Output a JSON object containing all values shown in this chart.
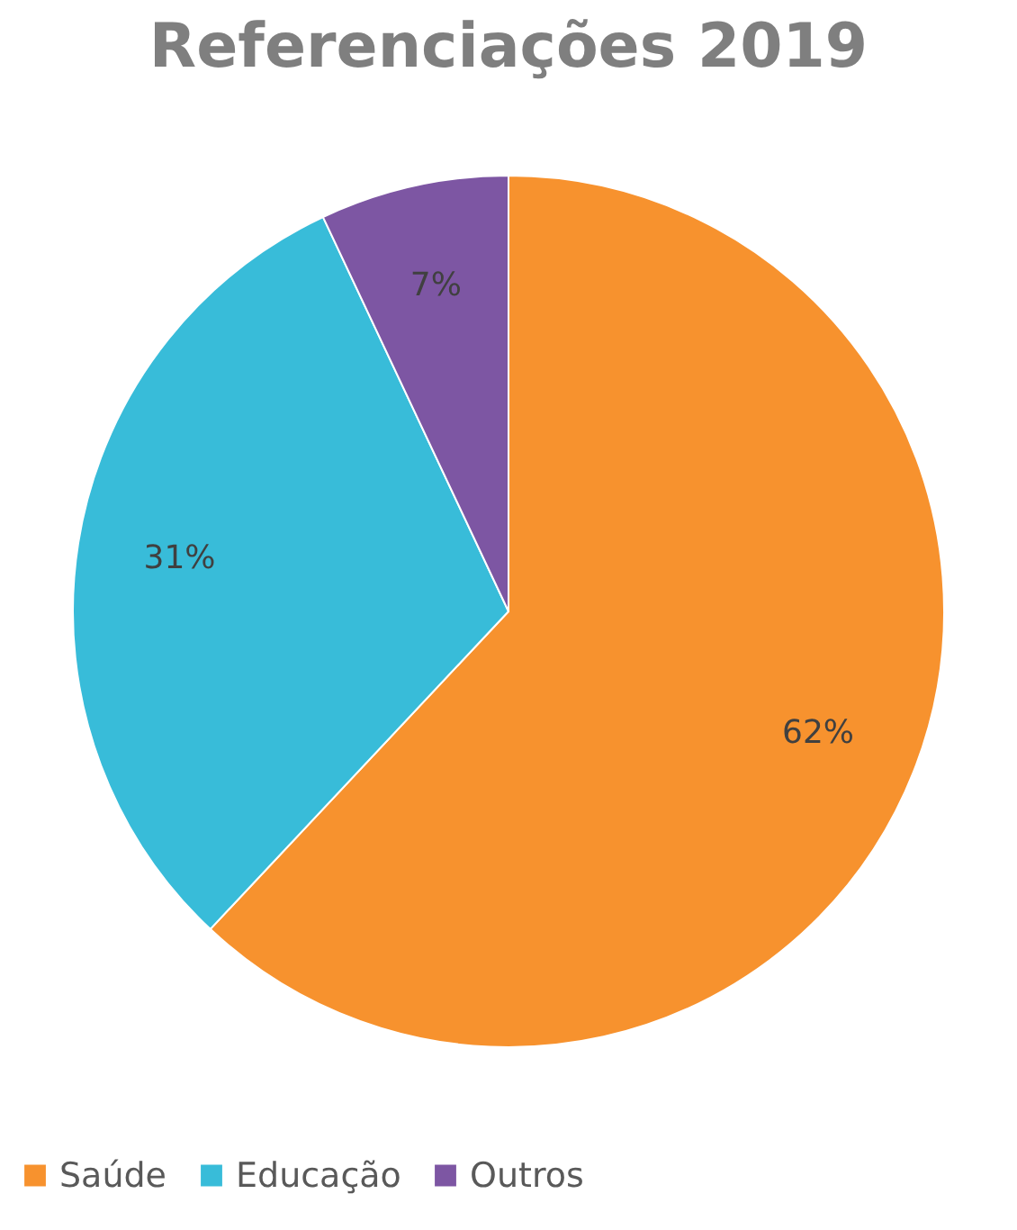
{
  "chart_data": {
    "type": "pie",
    "title": "Referenciações 2019",
    "categories": [
      "Saúde",
      "Educação",
      "Outros"
    ],
    "values": [
      62,
      31,
      7
    ],
    "colors": [
      "#f7922e",
      "#38bcd9",
      "#7d56a3"
    ],
    "value_labels": [
      "62%",
      "31%",
      "7%"
    ],
    "legend": "bottom"
  }
}
